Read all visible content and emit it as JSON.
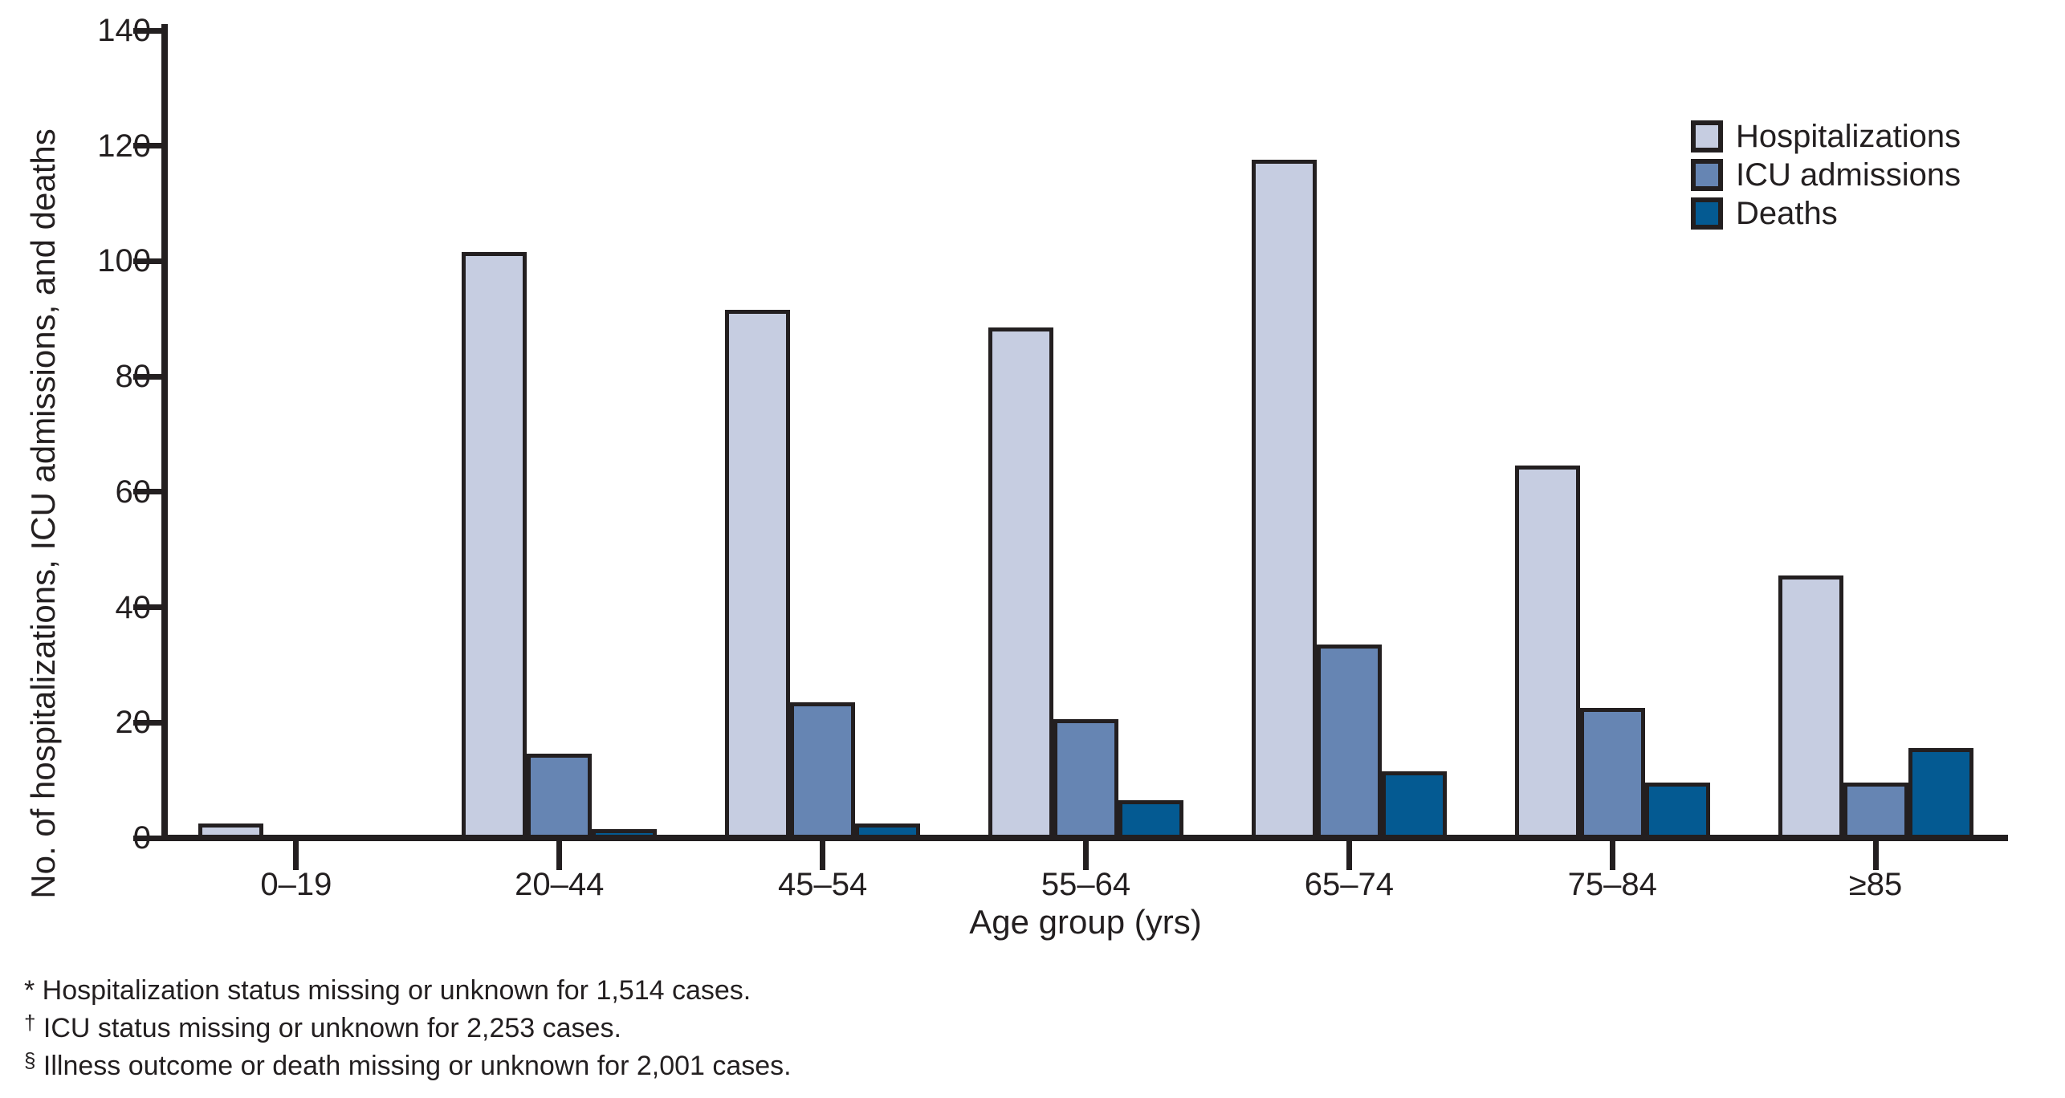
{
  "chart_data": {
    "type": "bar",
    "categories": [
      "0–19",
      "20–44",
      "45–54",
      "55–64",
      "65–74",
      "75–84",
      "≥85"
    ],
    "series": [
      {
        "name": "Hospitalizations",
        "color": "#c6cde1",
        "values": [
          2,
          101,
          91,
          88,
          117,
          64,
          45
        ]
      },
      {
        "name": "ICU admissions",
        "color": "#6685b3",
        "values": [
          0,
          14,
          23,
          20,
          33,
          22,
          9
        ]
      },
      {
        "name": "Deaths",
        "color": "#045a92",
        "values": [
          0,
          1,
          2,
          6,
          11,
          9,
          15
        ]
      }
    ],
    "title": "",
    "xlabel": "Age group (yrs)",
    "ylabel": "No. of hospitalizations, ICU admissions, and deaths",
    "ylim": [
      0,
      140
    ],
    "yticks": [
      0,
      20,
      40,
      60,
      80,
      100,
      120,
      140
    ],
    "grid": false,
    "legend_position": "upper right",
    "bar_border_color": "#231f20",
    "axis_color": "#231f20"
  },
  "legend": {
    "items": [
      "Hospitalizations",
      "ICU admissions",
      "Deaths"
    ]
  },
  "footnotes": [
    {
      "marker": "*",
      "text": "Hospitalization status missing or unknown for 1,514 cases."
    },
    {
      "marker": "†",
      "text": "ICU status missing or unknown for 2,253 cases."
    },
    {
      "marker": "§",
      "text": "Illness outcome or death missing or unknown for 2,001 cases."
    }
  ]
}
